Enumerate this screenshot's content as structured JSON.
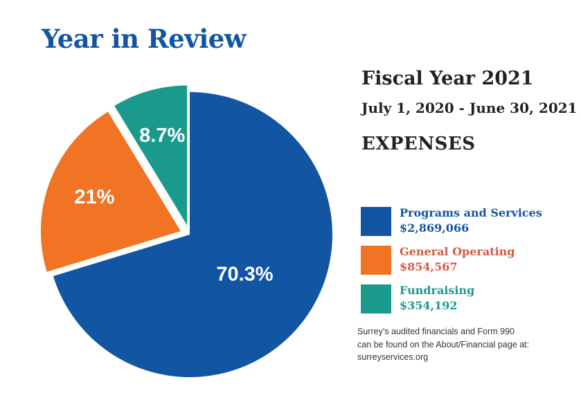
{
  "page": {
    "title": "Year in Review",
    "fiscal_title": "Fiscal Year 2021",
    "fiscal_range": "July 1, 2020 - June 30, 2021",
    "section_title": "EXPENSES",
    "footnote": [
      "Surrey’s audited financials and Form 990",
      "can be found on the About/Financial page at:",
      "surreyservices.org"
    ]
  },
  "chart_data": {
    "type": "pie",
    "title": "",
    "slices": [
      {
        "name": "Programs and Services",
        "amount": "$2,869,066",
        "value": 70.3,
        "label": "70.3%",
        "color": "#1155a3",
        "legend_name_color": "#1155a3",
        "legend_value_color": "#1155a3"
      },
      {
        "name": "General Operating",
        "amount": "$854,567",
        "value": 21,
        "label": "21%",
        "color": "#f07423",
        "legend_name_color": "#d9573f",
        "legend_value_color": "#d9573f"
      },
      {
        "name": "Fundraising",
        "amount": "$354,192",
        "value": 8.7,
        "label": "8.7%",
        "color": "#1a9a8c",
        "legend_name_color": "#1a9a8c",
        "legend_value_color": "#1a9a8c"
      }
    ],
    "legend_position": "right"
  }
}
